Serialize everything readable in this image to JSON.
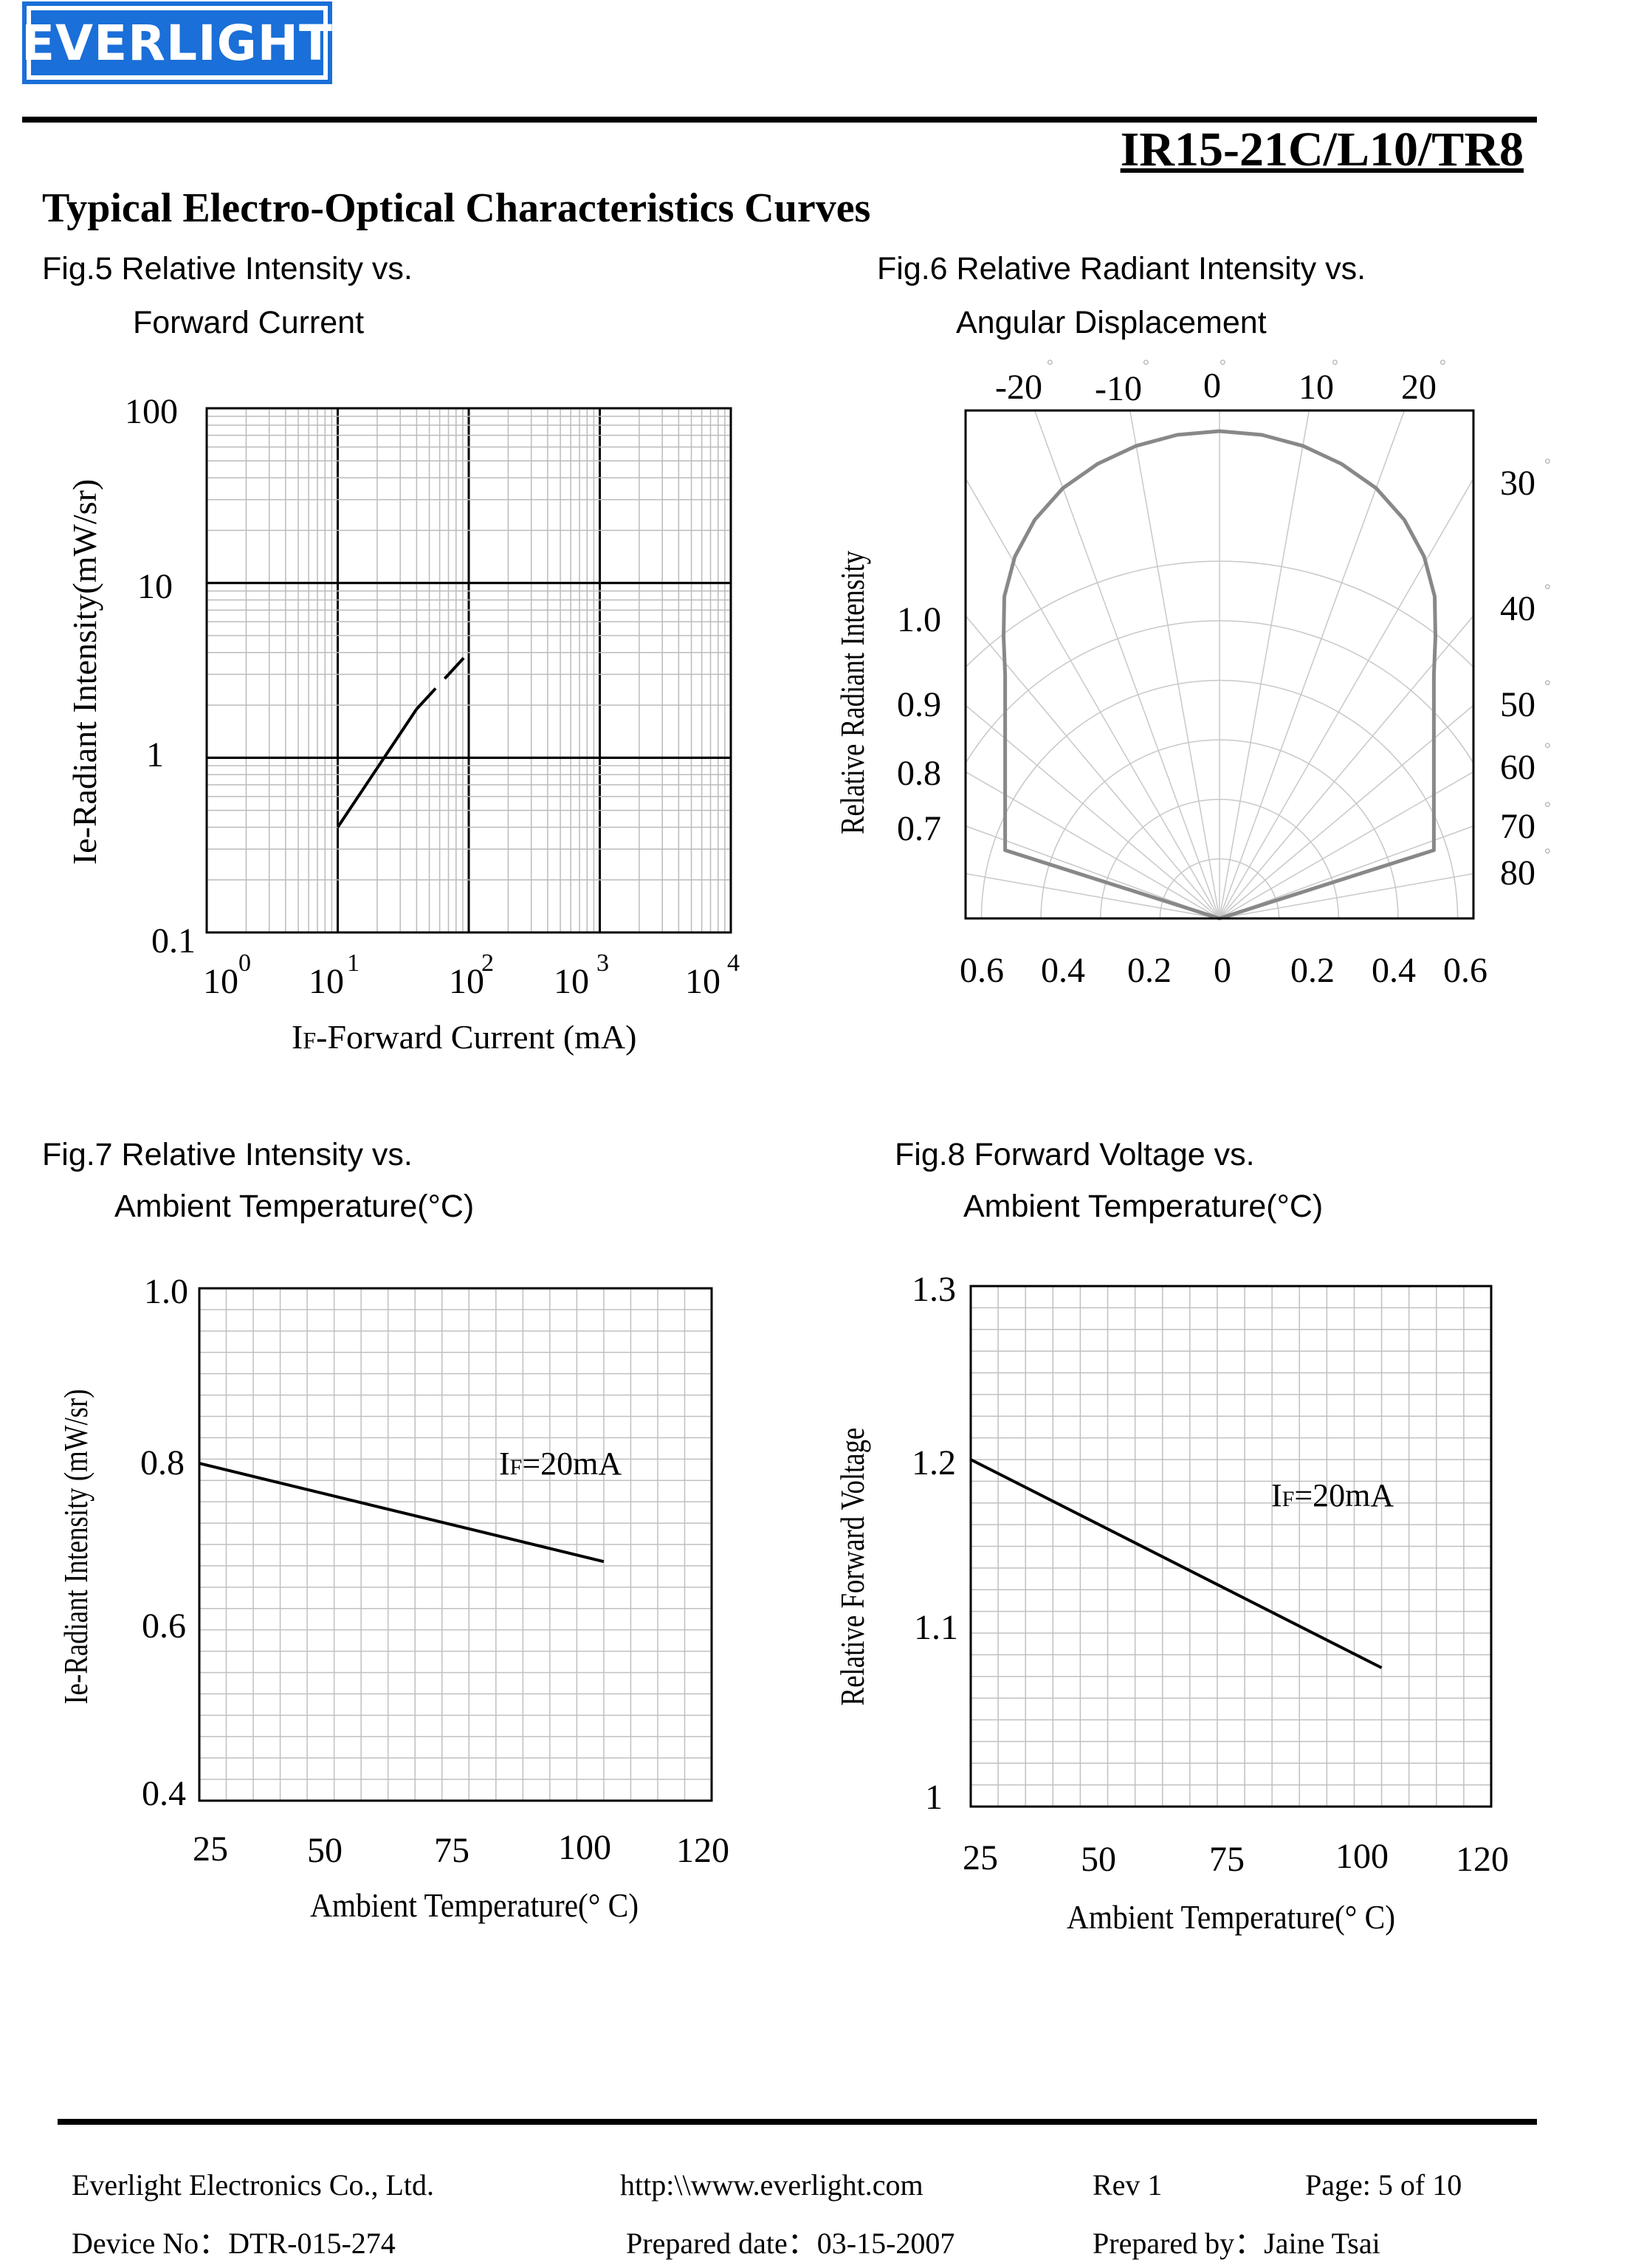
{
  "header": {
    "logo_text": "EVERLIGHT",
    "part_number": "IR15-21C/L10/TR8",
    "section_title": "Typical Electro-Optical Characteristics Curves"
  },
  "figures": {
    "fig5": {
      "title_line1": "Fig.5 Relative Intensity vs.",
      "title_line2": "Forward Current"
    },
    "fig6": {
      "title_line1": "Fig.6 Relative Radiant Intensity vs.",
      "title_line2": "Angular Displacement"
    },
    "fig7": {
      "title_line1": "Fig.7 Relative Intensity vs.",
      "title_line2": "Ambient Temperature(°C)"
    },
    "fig8": {
      "title_line1": "Fig.8 Forward Voltage vs.",
      "title_line2": "Ambient Temperature(°C)"
    }
  },
  "chart_data": [
    {
      "id": "fig5",
      "type": "line",
      "title": "Fig.5 Relative Intensity vs. Forward Current",
      "xlabel_main": "I",
      "xlabel_sub": "F",
      "xlabel_rest": "-Forward Current (mA)",
      "ylabel": "Ie-Radiant Intensity(mW/sr)",
      "xscale": "log",
      "yscale": "log",
      "xlim": [
        1,
        10000
      ],
      "ylim": [
        0.1,
        100
      ],
      "x_tick_bases": [
        "10",
        "10",
        "10",
        "10",
        "10"
      ],
      "x_tick_exponents": [
        "0",
        "1",
        "2",
        "3",
        "4"
      ],
      "y_tick_labels": [
        "100",
        "10",
        "1",
        "0.1"
      ],
      "grid": true,
      "series": [
        {
          "style": "solid",
          "x": [
            10,
            40
          ],
          "y": [
            0.4,
            1.9
          ]
        },
        {
          "style": "dashed",
          "x": [
            40,
            100
          ],
          "y": [
            1.9,
            4.0
          ]
        }
      ]
    },
    {
      "id": "fig6",
      "type": "polar",
      "title": "Fig.6 Relative Radiant Intensity vs. Angular Displacement",
      "ylabel": "Relative Radiant Intensity",
      "top_angle_labels": [
        "-20",
        "-10",
        "0",
        "10",
        "20"
      ],
      "right_angle_labels": [
        "30",
        "40",
        "50",
        "60",
        "70",
        "80"
      ],
      "degree_mark": "°",
      "radial_labels": [
        "1.0",
        "0.9",
        "0.8",
        "0.7"
      ],
      "bottom_labels": [
        "0.6",
        "0.4",
        "0.2",
        "0",
        "0.2",
        "0.4",
        "0.6"
      ],
      "grid": true,
      "series": [
        {
          "angle_deg": [
            -90,
            -80,
            -70,
            -60,
            -50,
            -40,
            -30,
            -20,
            -10,
            0,
            10,
            20,
            30,
            40,
            50,
            60,
            70,
            80,
            90
          ],
          "relative": [
            0.88,
            0.9,
            0.94,
            0.97,
            0.99,
            1.0,
            1.0,
            1.0,
            1.0,
            1.0,
            1.0,
            1.0,
            1.0,
            1.0,
            0.99,
            0.97,
            0.94,
            0.9,
            0.88
          ]
        }
      ]
    },
    {
      "id": "fig7",
      "type": "line",
      "title": "Fig.7 Relative Intensity vs. Ambient Temperature(°C)",
      "xlabel": "Ambient Temperature(° C)",
      "ylabel": "Ie-Radiant Intensity (mW/sr)",
      "xlim": [
        25,
        120
      ],
      "ylim": [
        0.4,
        1.0
      ],
      "x_ticks": [
        "25",
        "50",
        "75",
        "100",
        "120"
      ],
      "y_ticks": [
        "1.0",
        "0.8",
        "0.6",
        "0.4"
      ],
      "grid": true,
      "annotation_main": "I",
      "annotation_sub": "F",
      "annotation_rest": "=20mA",
      "series": [
        {
          "x": [
            25,
            100
          ],
          "y": [
            0.795,
            0.68
          ]
        }
      ]
    },
    {
      "id": "fig8",
      "type": "line",
      "title": "Fig.8 Forward Voltage vs. Ambient Temperature(°C)",
      "xlabel": "Ambient Temperature(° C)",
      "ylabel": "Relative Forward Voltage",
      "xlim": [
        25,
        120
      ],
      "ylim": [
        1.0,
        1.3
      ],
      "x_ticks": [
        "25",
        "50",
        "75",
        "100",
        "120"
      ],
      "y_ticks": [
        "1.3",
        "1.2",
        "1.1",
        "1"
      ],
      "grid": true,
      "annotation_main": "I",
      "annotation_sub": "F",
      "annotation_rest": "=20mA",
      "series": [
        {
          "x": [
            25,
            100
          ],
          "y": [
            1.2,
            1.08
          ]
        }
      ]
    }
  ],
  "footer": {
    "company": "Everlight Electronics Co., Ltd.",
    "url": "http:\\\\www.everlight.com",
    "rev": "Rev 1",
    "page": "Page: 5 of 10",
    "device_no": "Device No：DTR-015-274",
    "prepared_date": "Prepared date：03-15-2007",
    "prepared_by": "Prepared by：Jaine Tsai"
  }
}
